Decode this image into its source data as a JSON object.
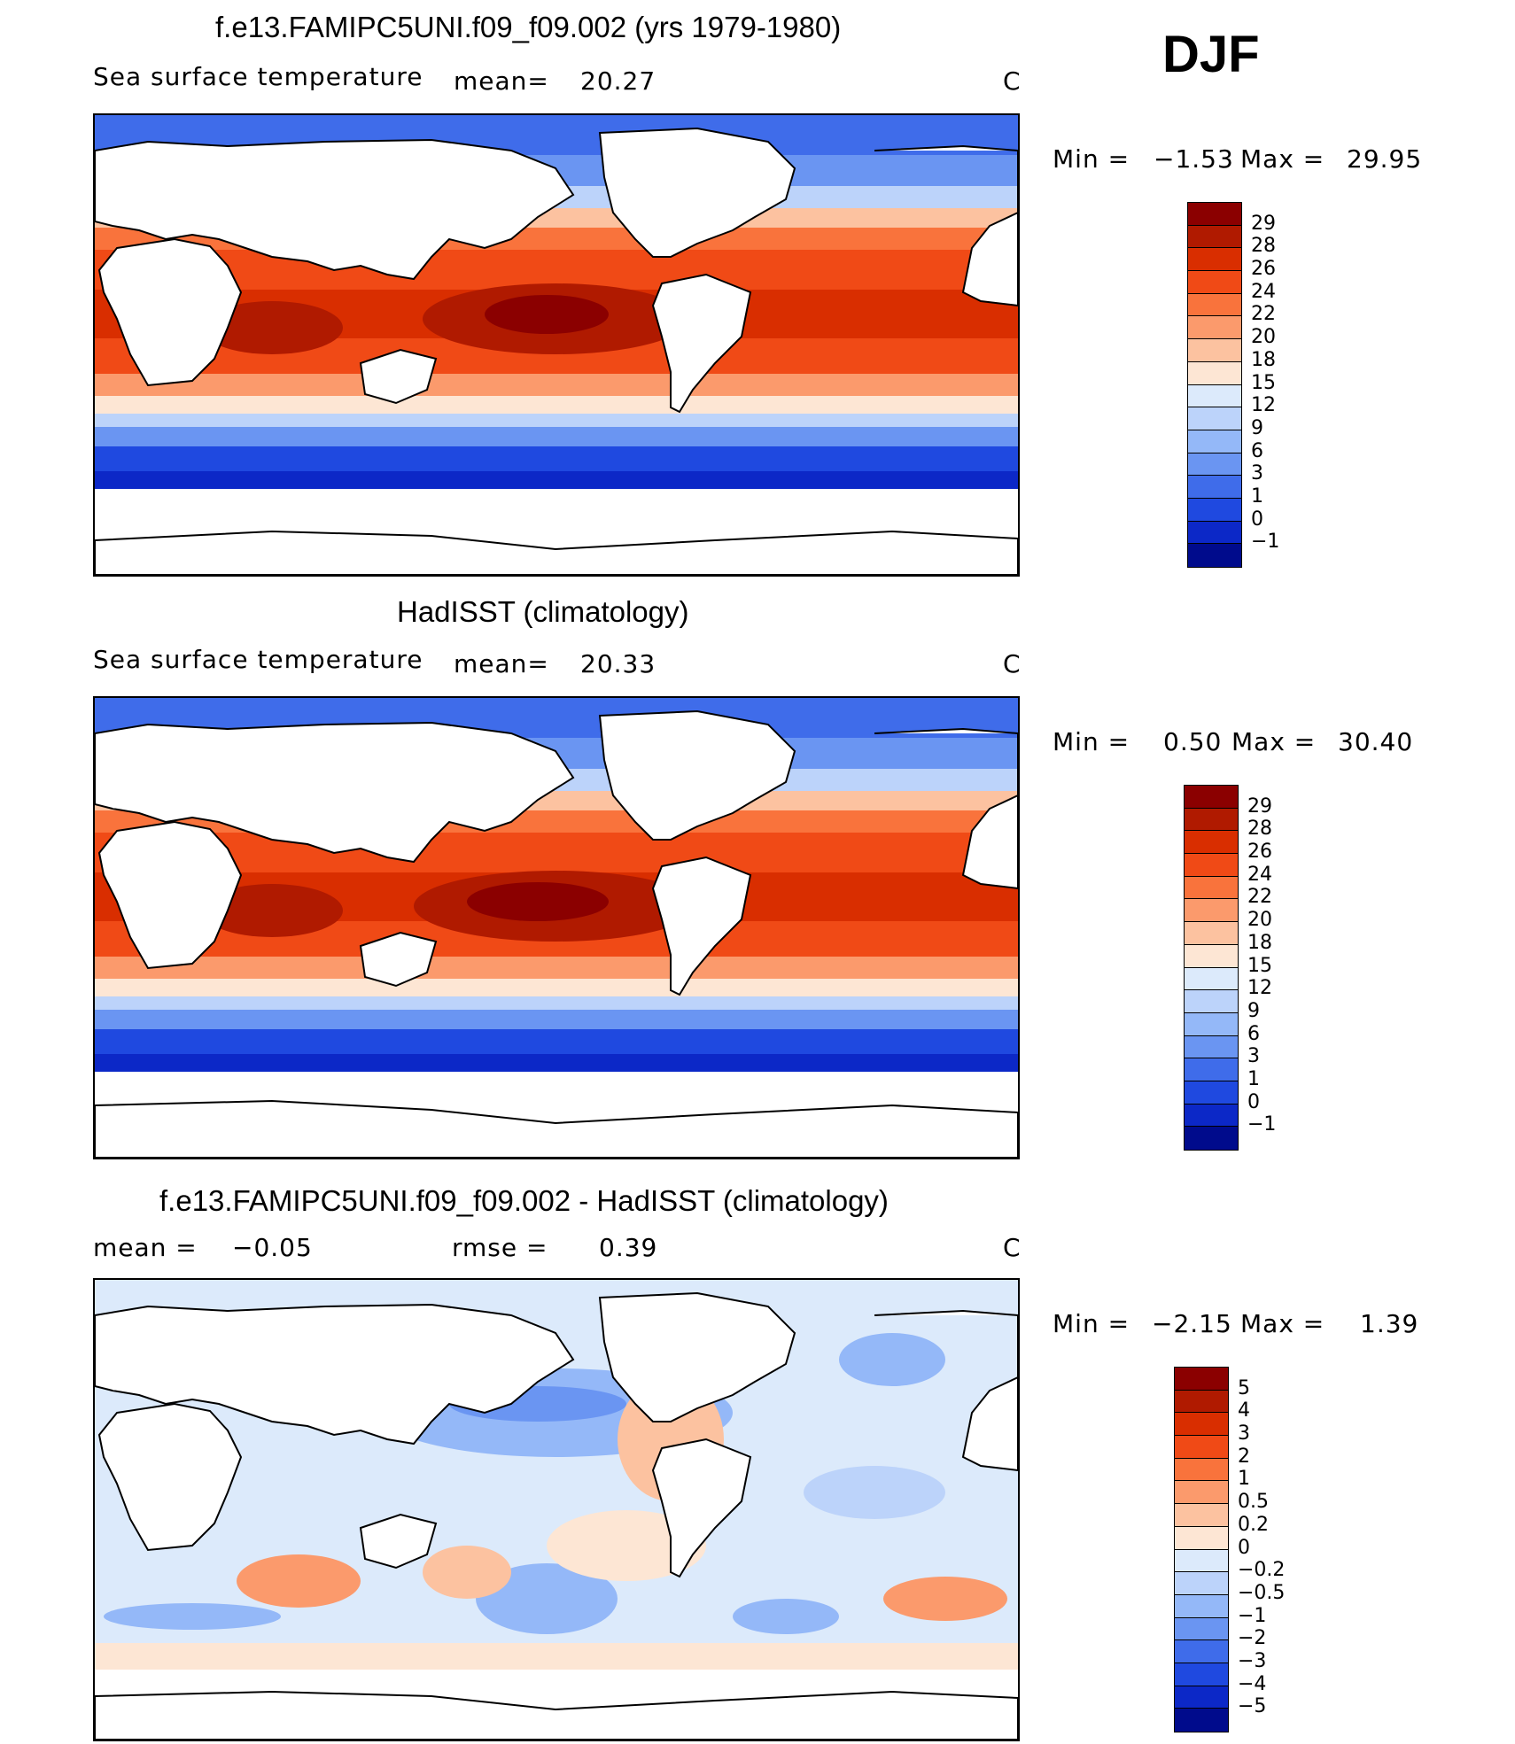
{
  "season": "DJF",
  "panels": [
    {
      "title": "f.e13.FAMIPC5UNI.f09_f09.002 (yrs 1979-1980)",
      "left_label": "Sea surface temperature",
      "mid_label": "mean=",
      "mid_value": "20.27",
      "units": "C",
      "min_label": "Min =",
      "min_value": "−1.53",
      "max_label": "Max =",
      "max_value": "29.95",
      "levels": [
        "29",
        "28",
        "26",
        "24",
        "22",
        "20",
        "18",
        "15",
        "12",
        "9",
        "6",
        "3",
        "1",
        "0",
        "−1"
      ],
      "colors": [
        "#8b0000",
        "#b01a00",
        "#d92e00",
        "#f04a16",
        "#f9733c",
        "#fb9a6c",
        "#fcc2a0",
        "#fde6d4",
        "#dceafb",
        "#bcd3fa",
        "#94b8f8",
        "#6a95f2",
        "#3f6cea",
        "#1f49e0",
        "#0c28c7",
        "#000b8c"
      ]
    },
    {
      "title": "HadISST (climatology)",
      "left_label": "Sea surface temperature",
      "mid_label": "mean=",
      "mid_value": "20.33",
      "units": "C",
      "min_label": "Min =",
      "min_value": "0.50",
      "max_label": "Max =",
      "max_value": "30.40",
      "levels": [
        "29",
        "28",
        "26",
        "24",
        "22",
        "20",
        "18",
        "15",
        "12",
        "9",
        "6",
        "3",
        "1",
        "0",
        "−1"
      ],
      "colors": [
        "#8b0000",
        "#b01a00",
        "#d92e00",
        "#f04a16",
        "#f9733c",
        "#fb9a6c",
        "#fcc2a0",
        "#fde6d4",
        "#dceafb",
        "#bcd3fa",
        "#94b8f8",
        "#6a95f2",
        "#3f6cea",
        "#1f49e0",
        "#0c28c7",
        "#000b8c"
      ]
    },
    {
      "title": "f.e13.FAMIPC5UNI.f09_f09.002 - HadISST (climatology)",
      "left_label": "mean =",
      "left_value": "−0.05",
      "mid_label": "rmse =",
      "mid_value": "0.39",
      "units": "C",
      "min_label": "Min =",
      "min_value": "−2.15",
      "max_label": "Max =",
      "max_value": "1.39",
      "levels": [
        "5",
        "4",
        "3",
        "2",
        "1",
        "0.5",
        "0.2",
        "0",
        "−0.2",
        "−0.5",
        "−1",
        "−2",
        "−3",
        "−4",
        "−5"
      ],
      "colors": [
        "#8b0000",
        "#b01a00",
        "#d92e00",
        "#f04a16",
        "#f9733c",
        "#fb9a6c",
        "#fcc2a0",
        "#fde6d4",
        "#dceafb",
        "#bcd3fa",
        "#94b8f8",
        "#6a95f2",
        "#3f6cea",
        "#1f49e0",
        "#0c28c7",
        "#000b8c"
      ]
    }
  ]
}
